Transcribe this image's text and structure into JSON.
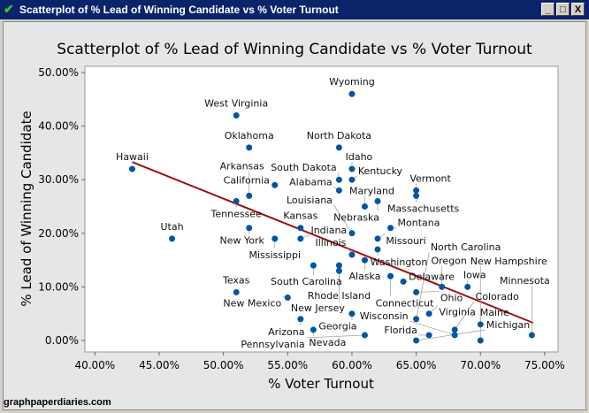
{
  "window": {
    "title": "Scatterplot of % Lead of Winning Candidate vs % Voter Turnout",
    "minimize": "_",
    "maximize": "□",
    "close": "X",
    "icon": "minitab-check-icon"
  },
  "watermark": "graphpaperdiaries.com",
  "chart_data": {
    "type": "scatter",
    "title": "Scatterplot of % Lead of Winning Candidate vs % Voter Turnout",
    "xlabel": "% Voter Turnout",
    "ylabel": "% Lead of Winning Candidate",
    "xlim": [
      39.5,
      75.5
    ],
    "ylim": [
      -1.5,
      51
    ],
    "xticks": [
      "40.00%",
      "45.00%",
      "50.00%",
      "55.00%",
      "60.00%",
      "65.00%",
      "70.00%",
      "75.00%"
    ],
    "xtick_values": [
      40,
      45,
      50,
      55,
      60,
      65,
      70,
      75
    ],
    "yticks": [
      "0.00%",
      "10.00%",
      "20.00%",
      "30.00%",
      "40.00%",
      "50.00%"
    ],
    "ytick_values": [
      0,
      10,
      20,
      30,
      40,
      50
    ],
    "grid": false,
    "point_color": "#0055a5",
    "line_color": "#a01010",
    "regression_line": {
      "x": [
        42.9,
        74.1
      ],
      "y": [
        33.3,
        3.3
      ]
    },
    "points": [
      {
        "label": "Wyoming",
        "x": 60,
        "y": 46
      },
      {
        "label": "West Virginia",
        "x": 51,
        "y": 42
      },
      {
        "label": "Oklahoma",
        "x": 52,
        "y": 36
      },
      {
        "label": "North Dakota",
        "x": 59,
        "y": 36
      },
      {
        "label": "Hawaii",
        "x": 42.9,
        "y": 32
      },
      {
        "label": "Idaho",
        "x": 60,
        "y": 32
      },
      {
        "label": "South Dakota",
        "x": 59,
        "y": 30
      },
      {
        "label": "Kentucky",
        "x": 60,
        "y": 30
      },
      {
        "label": "Alabama",
        "x": 59,
        "y": 28
      },
      {
        "label": "California",
        "x": 54,
        "y": 29
      },
      {
        "label": "Arkansas",
        "x": 52,
        "y": 27
      },
      {
        "label": "Tennessee",
        "x": 51,
        "y": 26
      },
      {
        "label": "Vermont",
        "x": 65,
        "y": 28
      },
      {
        "label": "Massachusetts",
        "x": 65,
        "y": 27
      },
      {
        "label": "Nebraska",
        "x": 62,
        "y": 26
      },
      {
        "label": "Maryland",
        "x": 61,
        "y": 25
      },
      {
        "label": "New York",
        "x": 52,
        "y": 21
      },
      {
        "label": "Kansas",
        "x": 56,
        "y": 21
      },
      {
        "label": "Mississippi",
        "x": 54,
        "y": 19
      },
      {
        "label": "Indiana",
        "x": 56,
        "y": 19
      },
      {
        "label": "Utah",
        "x": 46,
        "y": 19
      },
      {
        "label": "Louisiana",
        "x": 60,
        "y": 20
      },
      {
        "label": "Montana",
        "x": 63,
        "y": 21
      },
      {
        "label": "Missouri",
        "x": 62,
        "y": 19
      },
      {
        "label": "Washington",
        "x": 62,
        "y": 17
      },
      {
        "label": "Illinois",
        "x": 60,
        "y": 16
      },
      {
        "label": "Alaska",
        "x": 61,
        "y": 15
      },
      {
        "label": "South Carolina",
        "x": 57,
        "y": 14
      },
      {
        "label": "Rhode Island",
        "x": 59,
        "y": 14
      },
      {
        "label": "New Jersey",
        "x": 59,
        "y": 13
      },
      {
        "label": "Connecticut",
        "x": 63,
        "y": 12
      },
      {
        "label": "Delaware",
        "x": 64,
        "y": 11
      },
      {
        "label": "Oregon",
        "x": 67,
        "y": 10
      },
      {
        "label": "Iowa",
        "x": 69,
        "y": 10
      },
      {
        "label": "Ohio",
        "x": 65,
        "y": 9
      },
      {
        "label": "Texas",
        "x": 51,
        "y": 9
      },
      {
        "label": "New Mexico",
        "x": 55,
        "y": 8
      },
      {
        "label": "Georgia",
        "x": 60,
        "y": 5
      },
      {
        "label": "Virginia",
        "x": 66,
        "y": 5
      },
      {
        "label": "North Carolina",
        "x": 65,
        "y": 4
      },
      {
        "label": "Arizona",
        "x": 56,
        "y": 4
      },
      {
        "label": "Nevada",
        "x": 57,
        "y": 2
      },
      {
        "label": "Maine",
        "x": 70,
        "y": 3
      },
      {
        "label": "Colorado",
        "x": 68,
        "y": 2
      },
      {
        "label": "Florida",
        "x": 66,
        "y": 1
      },
      {
        "label": "Wisconsin",
        "x": 68,
        "y": 1
      },
      {
        "label": "Pennsylvania",
        "x": 61,
        "y": 1
      },
      {
        "label": "Minnesota",
        "x": 74,
        "y": 1
      },
      {
        "label": "Michigan",
        "x": 65,
        "y": 0
      },
      {
        "label": "New Hampshire",
        "x": 70,
        "y": 0
      }
    ]
  }
}
